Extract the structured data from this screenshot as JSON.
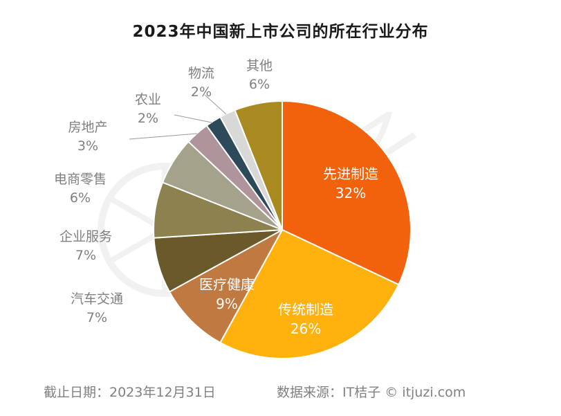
{
  "chart_data": {
    "type": "pie",
    "title": "2023年中国新上市公司的所在行业分布",
    "direction": "clockwise",
    "start_angle_deg": 0,
    "legend_position": "none",
    "total": 100,
    "slices": [
      {
        "name": "先进制造",
        "value": 32,
        "pct_label": "32%",
        "color": "#F2610C",
        "label_placement": "inside"
      },
      {
        "name": "传统制造",
        "value": 26,
        "pct_label": "26%",
        "color": "#FFB20E",
        "label_placement": "inside"
      },
      {
        "name": "医疗健康",
        "value": 9,
        "pct_label": "9%",
        "color": "#BF7941",
        "label_placement": "inside"
      },
      {
        "name": "汽车交通",
        "value": 7,
        "pct_label": "7%",
        "color": "#6A5A2B",
        "label_placement": "outside"
      },
      {
        "name": "企业服务",
        "value": 7,
        "pct_label": "7%",
        "color": "#8E8150",
        "label_placement": "outside"
      },
      {
        "name": "电商零售",
        "value": 6,
        "pct_label": "6%",
        "color": "#A5A28C",
        "label_placement": "outside"
      },
      {
        "name": "房地产",
        "value": 3,
        "pct_label": "3%",
        "color": "#B0949C",
        "label_placement": "outside",
        "leader_line": true
      },
      {
        "name": "农业",
        "value": 2,
        "pct_label": "2%",
        "color": "#2E4A5A",
        "label_placement": "outside",
        "leader_line": true
      },
      {
        "name": "物流",
        "value": 2,
        "pct_label": "2%",
        "color": "#D8D8D6",
        "label_placement": "outside",
        "leader_line": true
      },
      {
        "name": "其他",
        "value": 6,
        "pct_label": "6%",
        "color": "#A98A21",
        "label_placement": "outside"
      }
    ]
  },
  "footer": {
    "date_label": "截止日期：2023年12月31日",
    "source_label": "数据来源：IT桔子 © itjuzi.com"
  },
  "watermark": "IT桔子"
}
